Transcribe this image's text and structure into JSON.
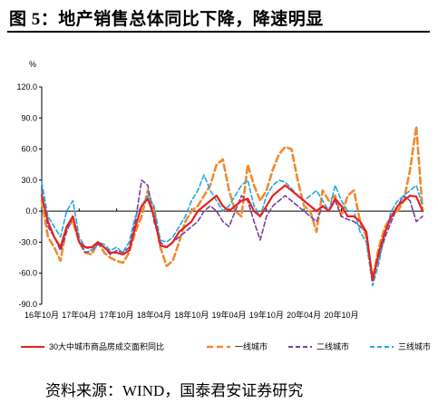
{
  "figure_title": "图 5：地产销售总体同比下降，降速明显",
  "source_note": "资料来源：WIND，国泰君安证券研究",
  "chart_data": {
    "type": "line",
    "ylabel": "%",
    "ylim": [
      -90,
      120
    ],
    "yticks": [
      "120.0",
      "90.0",
      "60.0",
      "30.0",
      "0.0",
      "-30.0",
      "-60.0",
      "-90.0"
    ],
    "ytick_values": [
      120,
      90,
      60,
      30,
      0,
      -30,
      -60,
      -90
    ],
    "x_start": "2016-10",
    "x_tick_labels": [
      "16年10月",
      "17年04月",
      "17年10月",
      "18年04月",
      "18年10月",
      "19年04月",
      "19年10月",
      "20年04月",
      "20年10月"
    ],
    "grid": false,
    "legend_position": "bottom",
    "series": [
      {
        "name": "30大中城市商品房成交面积同比",
        "color": "#e8211c",
        "dash": "solid",
        "values": [
          15,
          -10,
          -25,
          -35,
          -15,
          -5,
          -30,
          -35,
          -35,
          -30,
          -35,
          -40,
          -40,
          -42,
          -38,
          -15,
          5,
          12,
          -5,
          -33,
          -35,
          -30,
          -20,
          -15,
          -10,
          0,
          5,
          10,
          15,
          5,
          0,
          5,
          10,
          12,
          0,
          -5,
          5,
          15,
          20,
          25,
          20,
          15,
          10,
          5,
          0,
          5,
          0,
          12,
          5,
          -5,
          -5,
          -10,
          -20,
          -67,
          -40,
          -20,
          -5,
          5,
          10,
          15,
          14,
          0
        ]
      },
      {
        "name": "一线城市",
        "color": "#ef8a32",
        "dash": "dashed",
        "values": [
          10,
          -25,
          -35,
          -48,
          -15,
          -10,
          -30,
          -40,
          -42,
          -30,
          -40,
          -45,
          -48,
          -50,
          -40,
          -20,
          -5,
          20,
          0,
          -35,
          -53,
          -48,
          -30,
          -10,
          0,
          5,
          15,
          25,
          45,
          50,
          20,
          0,
          -5,
          45,
          25,
          10,
          20,
          40,
          55,
          62,
          60,
          30,
          5,
          0,
          -20,
          20,
          10,
          15,
          -5,
          15,
          20,
          -10,
          -25,
          -65,
          -35,
          -15,
          -5,
          0,
          10,
          40,
          82,
          0
        ]
      },
      {
        "name": "二线城市",
        "color": "#7a3ea3",
        "dash": "dashed",
        "values": [
          20,
          -15,
          -25,
          -38,
          -20,
          -5,
          -30,
          -40,
          -38,
          -32,
          -35,
          -42,
          -38,
          -40,
          -35,
          -10,
          30,
          25,
          -10,
          -30,
          -35,
          -30,
          -25,
          -20,
          -15,
          -10,
          0,
          5,
          0,
          -10,
          -15,
          0,
          15,
          10,
          -10,
          -28,
          -5,
          5,
          10,
          15,
          10,
          5,
          0,
          -5,
          -10,
          5,
          0,
          10,
          -5,
          -8,
          -10,
          -15,
          -20,
          -65,
          -45,
          -25,
          -10,
          5,
          15,
          10,
          -10,
          -5
        ]
      },
      {
        "name": "三线城市",
        "color": "#1fa9e1",
        "dash": "dashed",
        "values": [
          28,
          -5,
          -15,
          -25,
          0,
          10,
          -25,
          -35,
          -38,
          -30,
          -32,
          -38,
          -35,
          -40,
          -30,
          -5,
          5,
          15,
          5,
          -28,
          -30,
          -25,
          -15,
          -5,
          10,
          20,
          35,
          20,
          10,
          0,
          5,
          15,
          25,
          30,
          5,
          -5,
          15,
          25,
          30,
          28,
          22,
          15,
          10,
          15,
          20,
          10,
          0,
          25,
          10,
          0,
          0,
          -20,
          -30,
          -72,
          -50,
          -20,
          0,
          10,
          15,
          20,
          25,
          5
        ]
      }
    ]
  }
}
